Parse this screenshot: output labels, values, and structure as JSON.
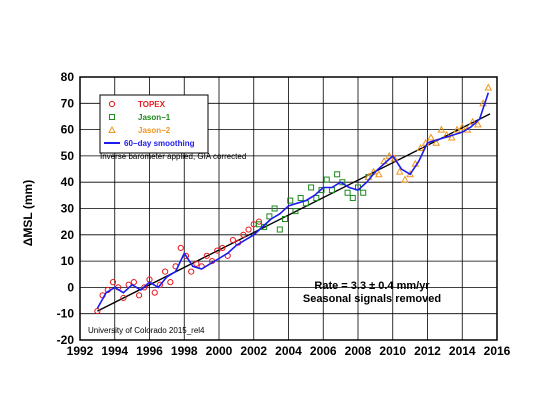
{
  "chart_data": {
    "type": "scatter",
    "xlim": [
      1992,
      2016
    ],
    "ylim": [
      -20,
      80
    ],
    "x_ticks": [
      1992,
      1994,
      1996,
      1998,
      2000,
      2002,
      2004,
      2006,
      2008,
      2010,
      2012,
      2014,
      2016
    ],
    "y_ticks": [
      -20,
      -10,
      0,
      10,
      20,
      30,
      40,
      50,
      60,
      70,
      80
    ],
    "ylabel": "ΔMSL (mm)",
    "grid": true,
    "legend_placement": "top-left",
    "series": [
      {
        "name": "TOPEX",
        "marker": "circle",
        "color": "#e8191e",
        "x": [
          1993.0,
          1993.3,
          1993.6,
          1993.9,
          1994.2,
          1994.5,
          1994.8,
          1995.1,
          1995.4,
          1995.7,
          1996.0,
          1996.3,
          1996.6,
          1996.9,
          1997.2,
          1997.5,
          1997.8,
          1998.1,
          1998.4,
          1998.7,
          1999.0,
          1999.3,
          1999.6,
          1999.9,
          2000.2,
          2000.5,
          2000.8,
          2001.1,
          2001.4,
          2001.7,
          2002.0,
          2002.3
        ],
        "y": [
          -9,
          -3,
          -1,
          2,
          0,
          -4,
          1,
          2,
          -3,
          0,
          3,
          -2,
          1,
          6,
          2,
          8,
          15,
          12,
          6,
          9,
          8,
          12,
          10,
          14,
          15,
          12,
          18,
          17,
          20,
          22,
          24,
          25
        ]
      },
      {
        "name": "Jason−1",
        "marker": "square",
        "color": "#1d8a1d",
        "x": [
          2002.3,
          2002.6,
          2002.9,
          2003.2,
          2003.5,
          2003.8,
          2004.1,
          2004.4,
          2004.7,
          2005.0,
          2005.3,
          2005.6,
          2005.9,
          2006.2,
          2006.5,
          2006.8,
          2007.1,
          2007.4,
          2007.7,
          2008.0,
          2008.3,
          2008.6
        ],
        "y": [
          24,
          23,
          27,
          30,
          22,
          26,
          33,
          29,
          34,
          32,
          38,
          34,
          37,
          41,
          37,
          43,
          40,
          36,
          34,
          38,
          36,
          42
        ]
      },
      {
        "name": "Jason−2",
        "marker": "triangle",
        "color": "#f0961e",
        "x": [
          2008.6,
          2008.9,
          2009.2,
          2009.5,
          2009.8,
          2010.1,
          2010.4,
          2010.7,
          2011.0,
          2011.3,
          2011.6,
          2011.9,
          2012.2,
          2012.5,
          2012.8,
          2013.1,
          2013.4,
          2013.7,
          2014.0,
          2014.3,
          2014.6,
          2014.9,
          2015.2,
          2015.5
        ],
        "y": [
          42,
          44,
          43,
          48,
          50,
          49,
          44,
          41,
          43,
          47,
          53,
          55,
          57,
          55,
          60,
          58,
          57,
          60,
          61,
          60,
          63,
          62,
          70,
          76
        ]
      },
      {
        "name": "60−day smoothing",
        "marker": "line",
        "color": "#1c1cf0",
        "x": [
          1993.0,
          1993.5,
          1994.0,
          1994.5,
          1995.0,
          1995.5,
          1996.0,
          1996.5,
          1997.0,
          1997.5,
          1998.0,
          1998.5,
          1999.0,
          1999.5,
          2000.0,
          2000.5,
          2001.0,
          2001.5,
          2002.0,
          2002.5,
          2003.0,
          2003.5,
          2004.0,
          2004.5,
          2005.0,
          2005.5,
          2006.0,
          2006.5,
          2007.0,
          2007.5,
          2008.0,
          2008.5,
          2009.0,
          2009.5,
          2010.0,
          2010.5,
          2011.0,
          2011.5,
          2012.0,
          2012.5,
          2013.0,
          2013.5,
          2014.0,
          2014.5,
          2015.0,
          2015.5
        ],
        "y": [
          -8,
          -2,
          0,
          -2,
          1,
          -1,
          2,
          0,
          4,
          6,
          13,
          8,
          7,
          9,
          11,
          13,
          16,
          18,
          20,
          23,
          26,
          28,
          31,
          32,
          33,
          35,
          38,
          38,
          40,
          38,
          37,
          40,
          44,
          47,
          50,
          45,
          43,
          48,
          55,
          56,
          57,
          58,
          59,
          61,
          64,
          74
        ]
      }
    ],
    "trend": {
      "x": [
        1993.0,
        2015.6
      ],
      "y": [
        -9,
        66
      ],
      "color": "#000000"
    },
    "annotations": {
      "note": "Inverse barometer applied, GIA corrected",
      "rate": "Rate = 3.3 ± 0.4 mm/yr",
      "seasonal": "Seasonal signals removed",
      "credit": "University of Colorado 2015_rel4"
    }
  }
}
